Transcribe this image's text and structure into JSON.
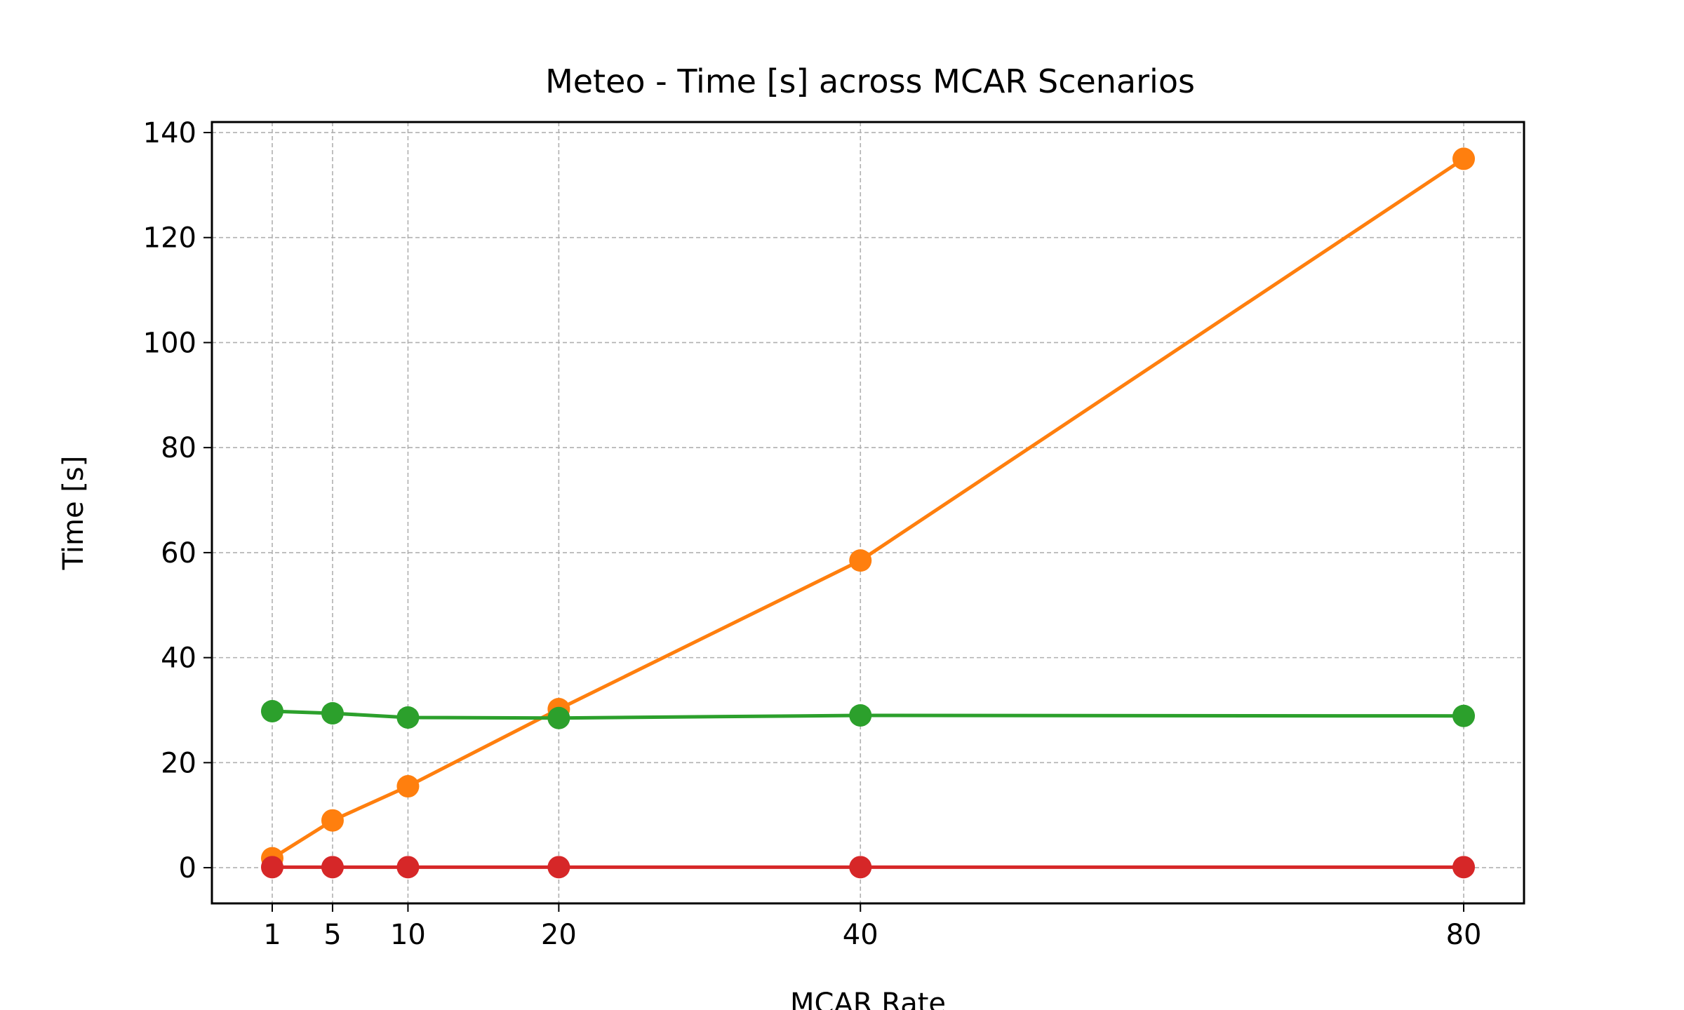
{
  "chart_data": {
    "type": "line",
    "title": "Meteo - Time [s] across MCAR Scenarios",
    "xlabel": "MCAR Rate",
    "ylabel": "Time [s]",
    "x": [
      1,
      5,
      10,
      20,
      40,
      80
    ],
    "xticks": [
      1,
      5,
      10,
      20,
      40,
      80
    ],
    "yticks": [
      0,
      20,
      40,
      60,
      80,
      100,
      120,
      140
    ],
    "xlim": [
      -3,
      84
    ],
    "ylim": [
      -6.8,
      142
    ],
    "grid": true,
    "series": [
      {
        "color": "#ff7f0e",
        "values": [
          1.8,
          9.0,
          15.5,
          30.2,
          58.5,
          135.0
        ]
      },
      {
        "color": "#2ca02c",
        "values": [
          29.8,
          29.4,
          28.6,
          28.5,
          29.0,
          28.9
        ]
      },
      {
        "color": "#d62728",
        "values": [
          0.1,
          0.1,
          0.1,
          0.1,
          0.1,
          0.1
        ]
      }
    ]
  }
}
